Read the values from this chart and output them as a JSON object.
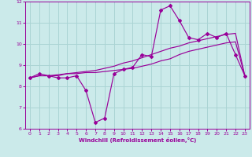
{
  "xlabel": "Windchill (Refroidissement éolien,°C)",
  "x_values": [
    0,
    1,
    2,
    3,
    4,
    5,
    6,
    7,
    8,
    9,
    10,
    11,
    12,
    13,
    14,
    15,
    16,
    17,
    18,
    19,
    20,
    21,
    22,
    23
  ],
  "line1_y": [
    8.4,
    8.6,
    8.5,
    8.4,
    8.4,
    8.5,
    7.8,
    6.3,
    6.5,
    8.6,
    8.8,
    8.9,
    9.5,
    9.4,
    11.6,
    11.8,
    11.1,
    10.3,
    10.2,
    10.5,
    10.3,
    10.5,
    9.5,
    8.5
  ],
  "line2_y": [
    8.4,
    8.5,
    8.5,
    8.5,
    8.6,
    8.6,
    8.65,
    8.65,
    8.7,
    8.75,
    8.8,
    8.85,
    8.95,
    9.05,
    9.2,
    9.3,
    9.5,
    9.65,
    9.75,
    9.85,
    9.95,
    10.05,
    10.1,
    8.5
  ],
  "line3_y": [
    8.4,
    8.5,
    8.5,
    8.55,
    8.6,
    8.65,
    8.7,
    8.75,
    8.85,
    8.95,
    9.1,
    9.2,
    9.35,
    9.5,
    9.65,
    9.8,
    9.9,
    10.05,
    10.15,
    10.25,
    10.35,
    10.45,
    10.5,
    8.5
  ],
  "bg_color": "#cbeaea",
  "grid_color": "#aad4d4",
  "line_color": "#990099",
  "xlim": [
    -0.5,
    23.5
  ],
  "ylim": [
    6,
    12
  ],
  "yticks": [
    6,
    7,
    8,
    9,
    10,
    11,
    12
  ],
  "xticks": [
    0,
    1,
    2,
    3,
    4,
    5,
    6,
    7,
    8,
    9,
    10,
    11,
    12,
    13,
    14,
    15,
    16,
    17,
    18,
    19,
    20,
    21,
    22,
    23
  ]
}
